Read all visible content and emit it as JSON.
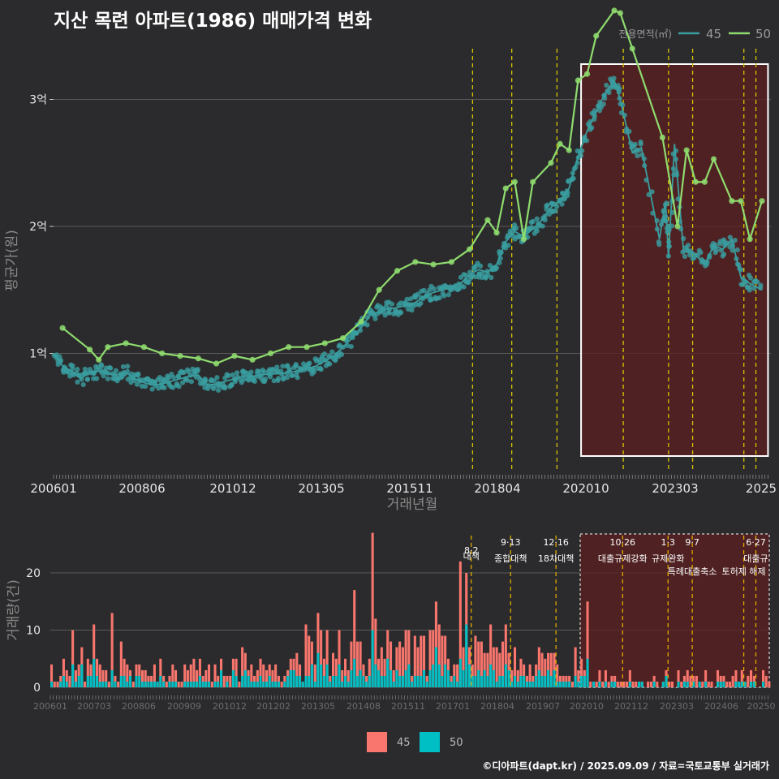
{
  "title": "지산 목련 아파트(1986) 매매가격 변화",
  "footer": "©디아파트(dapt.kr) / 2025.09.09 / 자료=국토교통부 실거래가",
  "colors": {
    "bg": "#2b2b2d",
    "grid": "#5a5a5a",
    "s45": "#3a9ea0",
    "s50": "#8fdc6e",
    "bar45": "#f8766d",
    "bar50": "#00bfc4",
    "vline": "#d6c400",
    "vline_bars": "#e0a800",
    "highlight_fill": "#5c1f1f",
    "highlight_stroke": "#ffffff"
  },
  "chart_data": [
    {
      "type": "line",
      "id": "price",
      "ylabel": "평균가(원)",
      "xlabel": "거래년월",
      "y_ticks": [
        {
          "v": 1,
          "label": "1억"
        },
        {
          "v": 2,
          "label": "2억"
        },
        {
          "v": 3,
          "label": "3억"
        }
      ],
      "x_ticks": [
        "200601",
        "200806",
        "201012",
        "201305",
        "201511",
        "201804",
        "202010",
        "202303",
        "2025"
      ],
      "legend_title": "전용면적(㎡)",
      "legend": [
        "45",
        "50"
      ],
      "series": [
        {
          "name": "45",
          "points": [
            [
              "2006-01",
              1.0
            ],
            [
              "2006-04",
              0.9
            ],
            [
              "2006-07",
              0.86
            ],
            [
              "2006-10",
              0.8
            ],
            [
              "2007-01",
              0.85
            ],
            [
              "2007-04",
              0.86
            ],
            [
              "2007-07",
              0.84
            ],
            [
              "2007-10",
              0.83
            ],
            [
              "2008-01",
              0.85
            ],
            [
              "2008-04",
              0.8
            ],
            [
              "2008-07",
              0.77
            ],
            [
              "2008-10",
              0.75
            ],
            [
              "2009-01",
              0.76
            ],
            [
              "2009-04",
              0.78
            ],
            [
              "2009-07",
              0.8
            ],
            [
              "2009-10",
              0.82
            ],
            [
              "2010-01",
              0.83
            ],
            [
              "2010-04",
              0.75
            ],
            [
              "2010-07",
              0.76
            ],
            [
              "2010-10",
              0.78
            ],
            [
              "2011-01",
              0.8
            ],
            [
              "2011-04",
              0.82
            ],
            [
              "2011-07",
              0.82
            ],
            [
              "2011-10",
              0.83
            ],
            [
              "2012-01",
              0.84
            ],
            [
              "2012-04",
              0.84
            ],
            [
              "2012-07",
              0.85
            ],
            [
              "2012-10",
              0.86
            ],
            [
              "2013-01",
              0.88
            ],
            [
              "2013-04",
              0.9
            ],
            [
              "2013-07",
              0.94
            ],
            [
              "2013-10",
              0.98
            ],
            [
              "2014-01",
              1.05
            ],
            [
              "2014-04",
              1.12
            ],
            [
              "2014-07",
              1.2
            ],
            [
              "2014-10",
              1.3
            ],
            [
              "2015-01",
              1.33
            ],
            [
              "2015-04",
              1.35
            ],
            [
              "2015-07",
              1.36
            ],
            [
              "2015-10",
              1.38
            ],
            [
              "2016-01",
              1.4
            ],
            [
              "2016-04",
              1.45
            ],
            [
              "2016-07",
              1.48
            ],
            [
              "2016-10",
              1.5
            ],
            [
              "2017-01",
              1.52
            ],
            [
              "2017-04",
              1.55
            ],
            [
              "2017-07",
              1.62
            ],
            [
              "2017-10",
              1.66
            ],
            [
              "2018-01",
              1.64
            ],
            [
              "2018-04",
              1.7
            ],
            [
              "2018-07",
              1.88
            ],
            [
              "2018-10",
              1.96
            ],
            [
              "2019-01",
              1.92
            ],
            [
              "2019-04",
              1.98
            ],
            [
              "2019-07",
              2.05
            ],
            [
              "2019-10",
              2.15
            ],
            [
              "2020-01",
              2.2
            ],
            [
              "2020-04",
              2.3
            ],
            [
              "2020-07",
              2.55
            ],
            [
              "2020-10",
              2.75
            ],
            [
              "2021-01",
              2.9
            ],
            [
              "2021-04",
              3.05
            ],
            [
              "2021-07",
              3.15
            ],
            [
              "2021-09",
              3.0
            ],
            [
              "2022-01",
              2.58
            ],
            [
              "2022-04",
              2.62
            ],
            [
              "2022-10",
              1.9
            ],
            [
              "2022-12",
              2.2
            ],
            [
              "2023-01",
              1.75
            ],
            [
              "2023-03",
              2.65
            ],
            [
              "2023-06",
              1.8
            ],
            [
              "2023-09",
              1.8
            ],
            [
              "2024-01",
              1.7
            ],
            [
              "2024-04",
              1.85
            ],
            [
              "2024-07",
              1.82
            ],
            [
              "2024-10",
              1.9
            ],
            [
              "2025-01",
              1.6
            ],
            [
              "2025-04",
              1.55
            ],
            [
              "2025-08",
              1.5
            ]
          ]
        },
        {
          "name": "50",
          "points": [
            [
              "2006-04",
              1.2
            ],
            [
              "2007-01",
              1.03
            ],
            [
              "2007-04",
              0.95
            ],
            [
              "2007-07",
              1.05
            ],
            [
              "2008-01",
              1.08
            ],
            [
              "2008-07",
              1.05
            ],
            [
              "2009-01",
              1.0
            ],
            [
              "2009-07",
              0.98
            ],
            [
              "2010-01",
              0.96
            ],
            [
              "2010-07",
              0.92
            ],
            [
              "2011-01",
              0.98
            ],
            [
              "2011-07",
              0.95
            ],
            [
              "2012-01",
              1.0
            ],
            [
              "2012-07",
              1.05
            ],
            [
              "2013-01",
              1.05
            ],
            [
              "2013-07",
              1.08
            ],
            [
              "2014-01",
              1.12
            ],
            [
              "2014-07",
              1.25
            ],
            [
              "2015-01",
              1.5
            ],
            [
              "2015-07",
              1.65
            ],
            [
              "2016-01",
              1.72
            ],
            [
              "2016-07",
              1.7
            ],
            [
              "2017-01",
              1.72
            ],
            [
              "2017-07",
              1.82
            ],
            [
              "2018-01",
              2.05
            ],
            [
              "2018-04",
              1.95
            ],
            [
              "2018-07",
              2.3
            ],
            [
              "2018-10",
              2.35
            ],
            [
              "2019-01",
              1.9
            ],
            [
              "2019-04",
              2.35
            ],
            [
              "2019-10",
              2.5
            ],
            [
              "2020-01",
              2.65
            ],
            [
              "2020-04",
              2.6
            ],
            [
              "2020-07",
              3.15
            ],
            [
              "2020-10",
              3.2
            ],
            [
              "2021-01",
              3.5
            ],
            [
              "2021-07",
              3.7
            ],
            [
              "2021-09",
              3.68
            ],
            [
              "2022-01",
              3.4
            ],
            [
              "2022-11",
              2.7
            ],
            [
              "2023-04",
              2.0
            ],
            [
              "2023-07",
              2.6
            ],
            [
              "2023-10",
              2.35
            ],
            [
              "2024-01",
              2.35
            ],
            [
              "2024-04",
              2.53
            ],
            [
              "2024-10",
              2.2
            ],
            [
              "2025-01",
              2.2
            ],
            [
              "2025-04",
              1.9
            ],
            [
              "2025-08",
              2.2
            ]
          ]
        }
      ]
    },
    {
      "type": "bar",
      "id": "volume",
      "ylabel": "거래량(건)",
      "y_ticks": [
        0,
        10,
        20
      ],
      "x_ticks": [
        "200601",
        "200703",
        "200806",
        "200909",
        "201012",
        "201202",
        "201305",
        "201408",
        "201511",
        "201701",
        "201804",
        "201907",
        "202010",
        "202112",
        "202303",
        "202406",
        "20250"
      ],
      "legend": [
        "45",
        "50"
      ],
      "peaks": [
        {
          "date": "2014-11",
          "value": 27
        },
        {
          "date": "2017-04",
          "value": 22
        },
        {
          "date": "2017-06",
          "value": 20
        },
        {
          "date": "2020-10",
          "value": 15
        },
        {
          "date": "2007-03",
          "value": 11
        }
      ]
    }
  ],
  "policies": [
    {
      "date": "2017-08",
      "date_label": "8·2",
      "label": "대책"
    },
    {
      "date": "2018-09",
      "date_label": "9·13",
      "label": "종합대책"
    },
    {
      "date": "2019-12",
      "date_label": "12·16",
      "label": "18차대책"
    },
    {
      "date": "2021-10",
      "date_label": "10·26",
      "label": "대출규제강화"
    },
    {
      "date": "2023-01",
      "date_label": "1·3",
      "label": "규제완화"
    },
    {
      "date": "2023-09",
      "date_label": "9·7",
      "label": "특례대출축소"
    },
    {
      "date": "2025-02",
      "date_label": "",
      "label": "토허제 해제"
    },
    {
      "date": "2025-06",
      "date_label": "6·27",
      "label": "대출규"
    }
  ],
  "highlight": {
    "from": "2020-08",
    "to": "2025-10"
  }
}
